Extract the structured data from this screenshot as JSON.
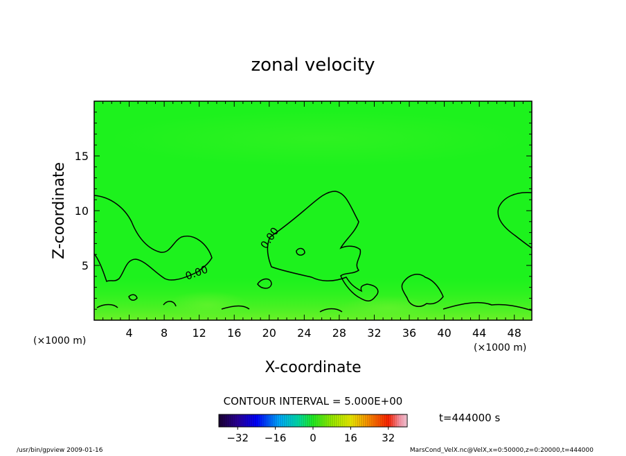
{
  "chart_data": {
    "type": "heatmap",
    "title": "zonal velocity",
    "xlabel": "X-coordinate",
    "ylabel": "Z-coordinate",
    "x_unit": "(×1000 m)",
    "y_unit": "(×1000 m)",
    "xlim": [
      0,
      50
    ],
    "ylim": [
      0,
      20
    ],
    "x_ticks": [
      4,
      8,
      12,
      16,
      20,
      24,
      28,
      32,
      36,
      40,
      44,
      48
    ],
    "y_ticks": [
      5,
      10,
      15
    ],
    "contour_interval_text": "CONTOUR INTERVAL = 5.000E+00",
    "contour_labels": [
      "0.00",
      "0.00"
    ],
    "contour_level": 0.0,
    "time_text": "t=444000 s",
    "colorbar": {
      "range": [
        -40,
        40
      ],
      "ticks": [
        -32,
        -16,
        0,
        16,
        32
      ],
      "colormap": "rainbow",
      "field_value_approx": 2
    },
    "grid": false,
    "legend": "colorbar-bottom"
  },
  "footer": {
    "left": "/usr/bin/gpview   2009-01-16",
    "right": "MarsCond_VelX.nc@VelX,x=0:50000,z=0:20000,t=444000"
  },
  "colors": {
    "field_green": "#1df21d",
    "field_light": "#5cf12a",
    "contour": "#000000"
  }
}
